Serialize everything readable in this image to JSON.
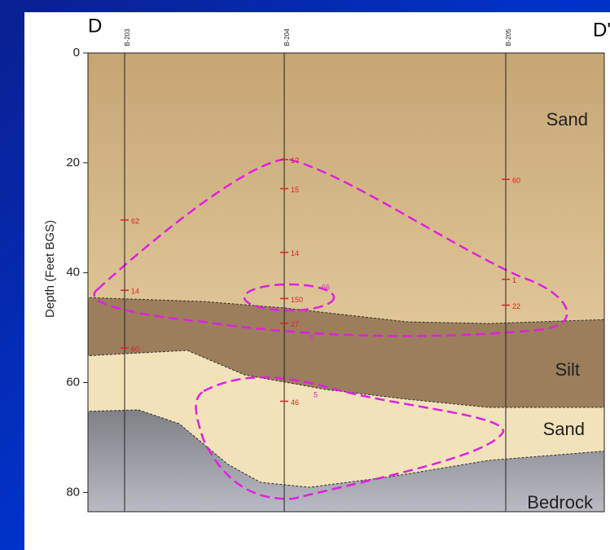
{
  "section": {
    "left_label": "D",
    "right_label": "D'",
    "y_axis_label": "Depth (Feet BGS)",
    "ylim": [
      0,
      83.5
    ],
    "yticks": [
      0,
      20,
      40,
      60,
      80
    ],
    "borings": [
      {
        "name": "B-203",
        "samples": [
          {
            "depth": 30.4,
            "label": "62"
          },
          {
            "depth": 43.2,
            "label": "14"
          },
          {
            "depth": 53.7,
            "label": "60"
          }
        ]
      },
      {
        "name": "B-204",
        "samples": [
          {
            "depth": 19.4,
            "label": "1?"
          },
          {
            "depth": 24.7,
            "label": "15"
          },
          {
            "depth": 36.3,
            "label": "14"
          },
          {
            "depth": 44.7,
            "label": "150"
          },
          {
            "depth": 49.2,
            "label": "27"
          },
          {
            "depth": 63.4,
            "label": "46"
          }
        ]
      },
      {
        "name": "B-205",
        "samples": [
          {
            "depth": 23,
            "label": "60"
          },
          {
            "depth": 41.2,
            "label": "1"
          },
          {
            "depth": 45.9,
            "label": "22"
          }
        ]
      }
    ],
    "layers": [
      "Sand",
      "Silt",
      "Sand",
      "Bedrock"
    ],
    "contour_labels": [
      "66",
      "5",
      "5"
    ]
  }
}
